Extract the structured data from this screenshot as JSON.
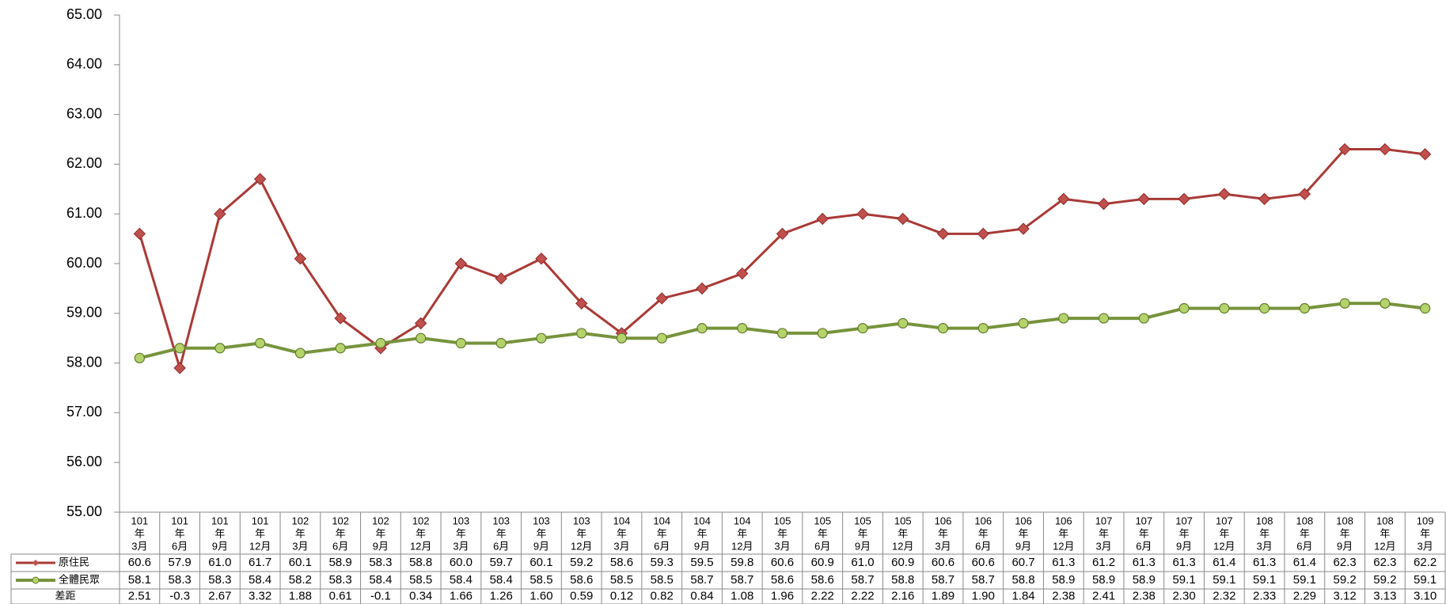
{
  "chart_data": {
    "type": "line",
    "categories": [
      [
        "101",
        "年",
        "3月"
      ],
      [
        "101",
        "年",
        "6月"
      ],
      [
        "101",
        "年",
        "9月"
      ],
      [
        "101",
        "年",
        "12月"
      ],
      [
        "102",
        "年",
        "3月"
      ],
      [
        "102",
        "年",
        "6月"
      ],
      [
        "102",
        "年",
        "9月"
      ],
      [
        "102",
        "年",
        "12月"
      ],
      [
        "103",
        "年",
        "3月"
      ],
      [
        "103",
        "年",
        "6月"
      ],
      [
        "103",
        "年",
        "9月"
      ],
      [
        "103",
        "年",
        "12月"
      ],
      [
        "104",
        "年",
        "3月"
      ],
      [
        "104",
        "年",
        "6月"
      ],
      [
        "104",
        "年",
        "9月"
      ],
      [
        "104",
        "年",
        "12月"
      ],
      [
        "105",
        "年",
        "3月"
      ],
      [
        "105",
        "年",
        "6月"
      ],
      [
        "105",
        "年",
        "9月"
      ],
      [
        "105",
        "年",
        "12月"
      ],
      [
        "106",
        "年",
        "3月"
      ],
      [
        "106",
        "年",
        "6月"
      ],
      [
        "106",
        "年",
        "9月"
      ],
      [
        "106",
        "年",
        "12月"
      ],
      [
        "107",
        "年",
        "3月"
      ],
      [
        "107",
        "年",
        "6月"
      ],
      [
        "107",
        "年",
        "9月"
      ],
      [
        "107",
        "年",
        "12月"
      ],
      [
        "108",
        "年",
        "3月"
      ],
      [
        "108",
        "年",
        "6月"
      ],
      [
        "108",
        "年",
        "9月"
      ],
      [
        "108",
        "年",
        "12月"
      ],
      [
        "109",
        "年",
        "3月"
      ]
    ],
    "series": [
      {
        "name": "原住民",
        "color": "#a83a36",
        "marker": "diamond",
        "values": [
          60.6,
          57.9,
          61.0,
          61.7,
          60.1,
          58.9,
          58.3,
          58.8,
          60.0,
          59.7,
          60.1,
          59.2,
          58.6,
          59.3,
          59.5,
          59.8,
          60.6,
          60.9,
          61.0,
          60.9,
          60.6,
          60.6,
          60.7,
          61.3,
          61.2,
          61.3,
          61.3,
          61.4,
          61.3,
          61.4,
          62.3,
          62.3,
          62.2
        ],
        "value_labels": [
          "60.6",
          "57.9",
          "61.0",
          "61.7",
          "60.1",
          "58.9",
          "58.3",
          "58.8",
          "60.0",
          "59.7",
          "60.1",
          "59.2",
          "58.6",
          "59.3",
          "59.5",
          "59.8",
          "60.6",
          "60.9",
          "61.0",
          "60.9",
          "60.6",
          "60.6",
          "60.7",
          "61.3",
          "61.2",
          "61.3",
          "61.3",
          "61.4",
          "61.3",
          "61.4",
          "62.3",
          "62.3",
          "62.2"
        ]
      },
      {
        "name": "全體民眾",
        "color": "#77933c",
        "marker": "circle",
        "values": [
          58.1,
          58.3,
          58.3,
          58.4,
          58.2,
          58.3,
          58.4,
          58.5,
          58.4,
          58.4,
          58.5,
          58.6,
          58.5,
          58.5,
          58.7,
          58.7,
          58.6,
          58.6,
          58.7,
          58.8,
          58.7,
          58.7,
          58.8,
          58.9,
          58.9,
          58.9,
          59.1,
          59.1,
          59.1,
          59.1,
          59.2,
          59.2,
          59.1
        ],
        "value_labels": [
          "58.1",
          "58.3",
          "58.3",
          "58.4",
          "58.2",
          "58.3",
          "58.4",
          "58.5",
          "58.4",
          "58.4",
          "58.5",
          "58.6",
          "58.5",
          "58.5",
          "58.7",
          "58.7",
          "58.6",
          "58.6",
          "58.7",
          "58.8",
          "58.7",
          "58.7",
          "58.8",
          "58.9",
          "58.9",
          "58.9",
          "59.1",
          "59.1",
          "59.1",
          "59.1",
          "59.2",
          "59.2",
          "59.1"
        ]
      },
      {
        "name": "差距",
        "table_only": true,
        "values": [
          2.51,
          -0.3,
          2.67,
          3.32,
          1.88,
          0.61,
          -0.1,
          0.34,
          1.66,
          1.26,
          1.6,
          0.59,
          0.12,
          0.82,
          0.84,
          1.08,
          1.96,
          2.22,
          2.22,
          2.16,
          1.89,
          1.9,
          1.84,
          2.38,
          2.41,
          2.38,
          2.3,
          2.32,
          2.33,
          2.29,
          3.12,
          3.13,
          3.1
        ],
        "value_labels": [
          "2.51",
          "-0.3",
          "2.67",
          "3.32",
          "1.88",
          "0.61",
          "-0.1",
          "0.34",
          "1.66",
          "1.26",
          "1.60",
          "0.59",
          "0.12",
          "0.82",
          "0.84",
          "1.08",
          "1.96",
          "2.22",
          "2.22",
          "2.16",
          "1.89",
          "1.90",
          "1.84",
          "2.38",
          "2.41",
          "2.38",
          "2.30",
          "2.32",
          "2.33",
          "2.29",
          "3.12",
          "3.13",
          "3.10"
        ]
      }
    ],
    "ylim": [
      55,
      65
    ],
    "yticks": [
      {
        "value": 55,
        "label": "55.00"
      },
      {
        "value": 56,
        "label": "56.00"
      },
      {
        "value": 57,
        "label": "57.00"
      },
      {
        "value": 58,
        "label": "58.00"
      },
      {
        "value": 59,
        "label": "59.00"
      },
      {
        "value": 60,
        "label": "60.00"
      },
      {
        "value": 61,
        "label": "61.00"
      },
      {
        "value": 62,
        "label": "62.00"
      },
      {
        "value": 63,
        "label": "63.00"
      },
      {
        "value": 64,
        "label": "64.00"
      },
      {
        "value": 65,
        "label": "65.00"
      }
    ],
    "grid": false
  }
}
